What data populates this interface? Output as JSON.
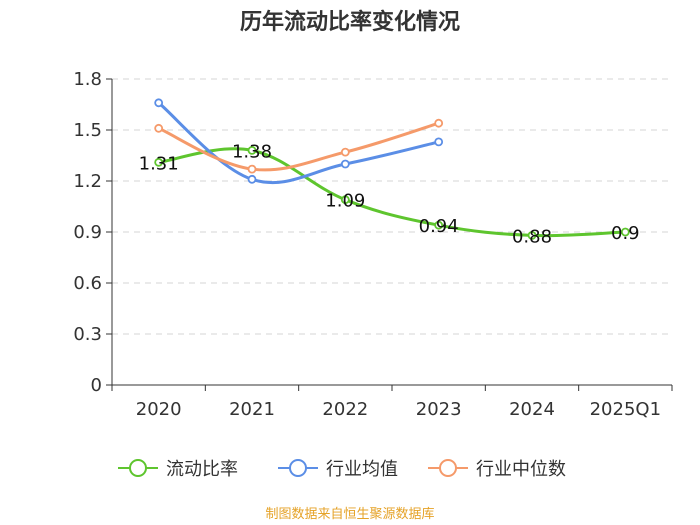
{
  "chart_data": {
    "type": "line",
    "title": "历年流动比率变化情况",
    "categories": [
      "2020",
      "2021",
      "2022",
      "2023",
      "2024",
      "2025Q1"
    ],
    "y_ticks": [
      "0",
      "0.3",
      "0.6",
      "0.9",
      "1.2",
      "1.5",
      "1.8"
    ],
    "ylim": [
      0,
      1.8
    ],
    "grid": true,
    "legend_position": "bottom",
    "series": [
      {
        "name": "流动比率",
        "color": "#5ec52e",
        "values": [
          1.31,
          1.38,
          1.09,
          0.94,
          0.88,
          0.9
        ],
        "labels": [
          "1.31",
          "1.38",
          "1.09",
          "0.94",
          "0.88",
          "0.9"
        ]
      },
      {
        "name": "行业均值",
        "color": "#5b8ee6",
        "values": [
          1.66,
          1.21,
          1.3,
          1.43,
          null,
          null
        ]
      },
      {
        "name": "行业中位数",
        "color": "#f59a6a",
        "values": [
          1.51,
          1.27,
          1.37,
          1.54,
          null,
          null
        ]
      }
    ]
  },
  "footer": {
    "source": "制图数据来自恒生聚源数据库"
  }
}
